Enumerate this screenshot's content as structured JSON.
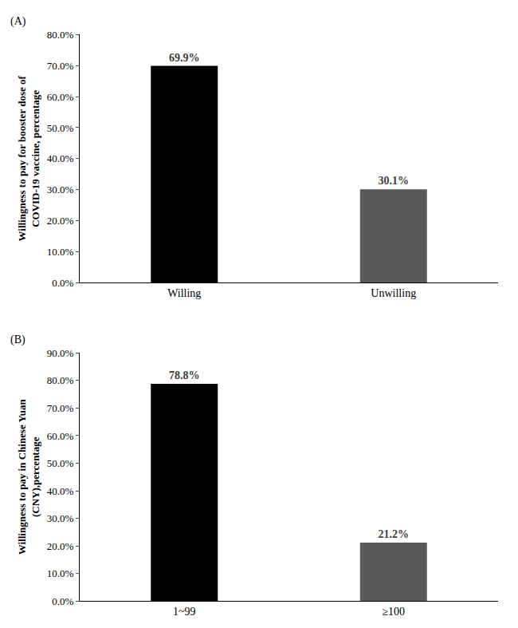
{
  "chart_data": [
    {
      "type": "bar",
      "title": "(A)",
      "y_label": "Willingness to pay for booster dose of COVID-19 vaccine, percentage",
      "categories": [
        "Willing",
        "Unwilling"
      ],
      "values": [
        69.9,
        30.1
      ],
      "value_labels": [
        "69.9%",
        "30.1%"
      ],
      "colors": [
        "#000000",
        "#595959"
      ],
      "data_labels": true,
      "grid": false,
      "ylim": [
        0,
        80
      ],
      "yticks": [
        {
          "value": 0,
          "label": "0.0%"
        },
        {
          "value": 10,
          "label": "10.0%"
        },
        {
          "value": 20,
          "label": "20.0%"
        },
        {
          "value": 30,
          "label": "30.0%"
        },
        {
          "value": 40,
          "label": "40.0%"
        },
        {
          "value": 50,
          "label": "50.0%"
        },
        {
          "value": 60,
          "label": "60.0%"
        },
        {
          "value": 70,
          "label": "70.0%"
        },
        {
          "value": 80,
          "label": "80.0%"
        }
      ]
    },
    {
      "type": "bar",
      "title": "(B)",
      "y_label": "Willingness to pay in Chinese Yuan (CNY),percentage",
      "categories": [
        "1~99",
        "≥100"
      ],
      "values": [
        78.8,
        21.2
      ],
      "value_labels": [
        "78.8%",
        "21.2%"
      ],
      "colors": [
        "#000000",
        "#595959"
      ],
      "data_labels": true,
      "grid": false,
      "ylim": [
        0,
        90
      ],
      "yticks": [
        {
          "value": 0,
          "label": "0.0%"
        },
        {
          "value": 10,
          "label": "10.0%"
        },
        {
          "value": 20,
          "label": "20.0%"
        },
        {
          "value": 30,
          "label": "30.0%"
        },
        {
          "value": 40,
          "label": "40.0%"
        },
        {
          "value": 50,
          "label": "50.0%"
        },
        {
          "value": 60,
          "label": "60.0%"
        },
        {
          "value": 70,
          "label": "70.0%"
        },
        {
          "value": 80,
          "label": "80.0%"
        },
        {
          "value": 90,
          "label": "90.0%"
        }
      ]
    }
  ]
}
